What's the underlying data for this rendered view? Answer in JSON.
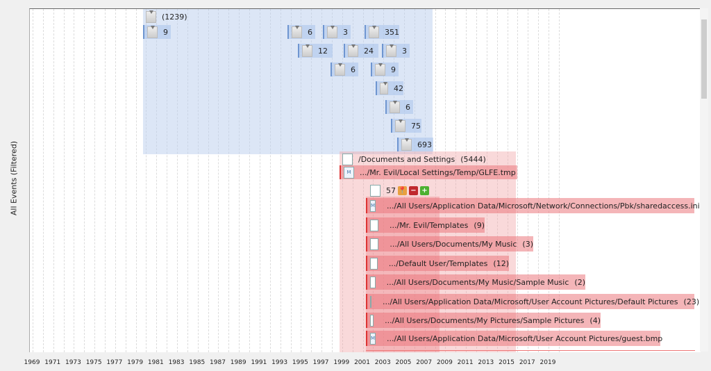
{
  "y_axis_label": "All Events (Filtered)",
  "x_axis_years": [
    "1969",
    "1971",
    "1973",
    "1975",
    "1977",
    "1979",
    "1981",
    "1983",
    "1985",
    "1987",
    "1989",
    "1991",
    "1993",
    "1995",
    "1997",
    "1999",
    "2001",
    "2003",
    "2005",
    "2007",
    "2009",
    "2011",
    "2013",
    "2015",
    "2017",
    "2019"
  ],
  "blue_group": {
    "header": "(1239)",
    "counts": [
      "9",
      "6",
      "3",
      "351",
      "12",
      "24",
      "3",
      "6",
      "9",
      "42",
      "6",
      "75",
      "693"
    ]
  },
  "red_group": {
    "header": "/Documents and Settings",
    "header_count": "(5444)",
    "glfe": ".../Mr. Evil/Local Settings/Temp/GLFE.tmp",
    "sub_count": "57",
    "rows": [
      {
        "path": ".../All Users/Application Data/Microsoft/Network/Connections/Pbk/sharedaccess.ini",
        "count": ""
      },
      {
        "path": ".../Mr. Evil/Templates",
        "count": "(9)"
      },
      {
        "path": ".../All Users/Documents/My Music",
        "count": "(3)"
      },
      {
        "path": ".../Default User/Templates",
        "count": "(12)"
      },
      {
        "path": ".../All Users/Documents/My Music/Sample Music",
        "count": "(2)"
      },
      {
        "path": ".../All Users/Application Data/Microsoft/User Account Pictures/Default Pictures",
        "count": "(23)"
      },
      {
        "path": ".../All Users/Documents/My Pictures/Sample Pictures",
        "count": "(4)"
      },
      {
        "path": ".../All Users/Application Data/Microsoft/User Account Pictures/guest.bmp",
        "count": ""
      }
    ]
  },
  "colors": {
    "blue_group": "#c9d8f0",
    "red_group": "#f0b4b6"
  }
}
